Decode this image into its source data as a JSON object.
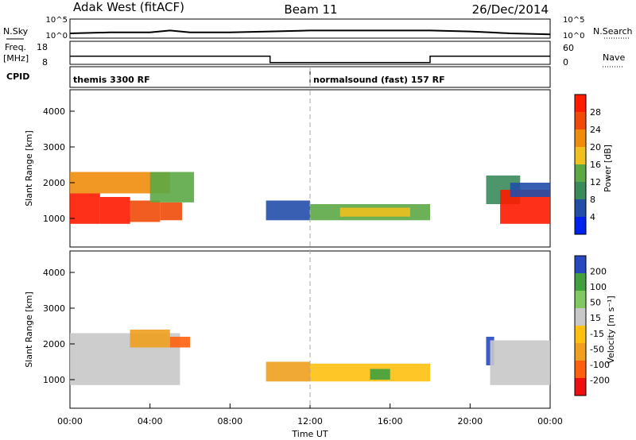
{
  "header": {
    "station": "Adak West (fitACF)",
    "beam": "Beam 11",
    "date": "26/Dec/2014"
  },
  "colors": {
    "power": [
      "#0022ee",
      "#224ea8",
      "#3a8a5a",
      "#5ca845",
      "#f0c020",
      "#f08c0c",
      "#f04a08",
      "#ff1a00"
    ],
    "velocity": [
      "#ee1010",
      "#ff6010",
      "#f0a020",
      "#ffc010",
      "#c8c8c8",
      "#80c860",
      "#40a040",
      "#2848c0"
    ]
  },
  "chart_data": [
    {
      "type": "line",
      "name": "N.Sky / N.Search",
      "ylabel": "N.Sky",
      "ylabel_right": "N.Search",
      "yticks": [
        "10^5",
        "10^0"
      ],
      "yticks_right": [
        "10^5",
        "10^0"
      ],
      "xlim": [
        0,
        24
      ],
      "x": [
        0,
        2,
        4,
        5,
        6,
        8,
        10,
        12,
        14,
        16,
        18,
        20,
        21,
        22,
        24
      ],
      "series": [
        {
          "values": [
            0.25,
            0.3,
            0.3,
            0.4,
            0.3,
            0.3,
            0.35,
            0.4,
            0.4,
            0.4,
            0.4,
            0.35,
            0.3,
            0.25,
            0.2
          ]
        }
      ]
    },
    {
      "type": "line",
      "name": "Freq / Nave",
      "ylabel": "Freq.",
      "yunit": "[MHz]",
      "ylabel_right": "Nave",
      "yticks": [
        "18",
        "8"
      ],
      "yticks_right": [
        "60",
        "0"
      ],
      "ylim": [
        8,
        18
      ],
      "xlim": [
        0,
        24
      ],
      "series": [
        {
          "x": [
            0,
            10,
            10,
            18,
            18,
            24
          ],
          "values": [
            11.5,
            11.5,
            8.8,
            8.8,
            11.5,
            11.5
          ]
        }
      ]
    },
    {
      "type": "table",
      "name": "CPID",
      "label": "CPID",
      "modes": [
        {
          "start": 0,
          "end": 12,
          "text": "themis 3300 RF"
        },
        {
          "start": 12,
          "end": 24,
          "text": "normalsound (fast) 157 RF"
        }
      ]
    },
    {
      "type": "heatmap",
      "name": "Power",
      "ylabel": "Slant Range [km]",
      "ylim": [
        200,
        4600
      ],
      "yticks": [
        1000,
        2000,
        3000,
        4000
      ],
      "xlim": [
        0,
        24
      ],
      "colorbar": {
        "label": "Power [dB]",
        "ticks": [
          "28",
          "24",
          "20",
          "16",
          "12",
          "8",
          "4"
        ]
      },
      "regions": [
        {
          "x0": 0.0,
          "x1": 1.5,
          "y0": 850,
          "y1": 1700,
          "level": 7
        },
        {
          "x0": 1.5,
          "x1": 3.0,
          "y0": 850,
          "y1": 1600,
          "level": 7
        },
        {
          "x0": 3.0,
          "x1": 4.5,
          "y0": 900,
          "y1": 1500,
          "level": 6
        },
        {
          "x0": 4.5,
          "x1": 5.6,
          "y0": 950,
          "y1": 1450,
          "level": 6
        },
        {
          "x0": 0.0,
          "x1": 5.0,
          "y0": 1700,
          "y1": 2300,
          "level": 5
        },
        {
          "x0": 4.0,
          "x1": 6.2,
          "y0": 1450,
          "y1": 2300,
          "level": 3
        },
        {
          "x0": 9.8,
          "x1": 12.0,
          "y0": 950,
          "y1": 1500,
          "level": 1
        },
        {
          "x0": 12.0,
          "x1": 18.0,
          "y0": 950,
          "y1": 1400,
          "level": 3
        },
        {
          "x0": 13.5,
          "x1": 17.0,
          "y0": 1050,
          "y1": 1300,
          "level": 4
        },
        {
          "x0": 20.8,
          "x1": 22.5,
          "y0": 1400,
          "y1": 2200,
          "level": 2
        },
        {
          "x0": 21.5,
          "x1": 24.0,
          "y0": 850,
          "y1": 1800,
          "level": 7
        },
        {
          "x0": 22.0,
          "x1": 24.0,
          "y0": 1600,
          "y1": 2000,
          "level": 1
        }
      ]
    },
    {
      "type": "heatmap",
      "name": "Velocity",
      "ylabel": "Slant Range [km]",
      "xlabel": "Time UT",
      "ylim": [
        200,
        4600
      ],
      "yticks": [
        1000,
        2000,
        3000,
        4000
      ],
      "xlim": [
        0,
        24
      ],
      "xticks": [
        "00:00",
        "04:00",
        "08:00",
        "12:00",
        "16:00",
        "20:00",
        "00:00"
      ],
      "colorbar": {
        "label": "Velocity [m s⁻¹]",
        "ticks": [
          "200",
          "100",
          "50",
          "15",
          "-15",
          "-50",
          "-100",
          "-200"
        ]
      },
      "regions": [
        {
          "x0": 0.0,
          "x1": 5.5,
          "y0": 850,
          "y1": 2300,
          "level": 4
        },
        {
          "x0": 3.0,
          "x1": 5.0,
          "y0": 1900,
          "y1": 2400,
          "level": 2
        },
        {
          "x0": 5.0,
          "x1": 6.0,
          "y0": 1900,
          "y1": 2200,
          "level": 1
        },
        {
          "x0": 9.8,
          "x1": 12.0,
          "y0": 950,
          "y1": 1500,
          "level": 2
        },
        {
          "x0": 12.0,
          "x1": 18.0,
          "y0": 950,
          "y1": 1450,
          "level": 3
        },
        {
          "x0": 15.0,
          "x1": 16.0,
          "y0": 1000,
          "y1": 1300,
          "level": 6
        },
        {
          "x0": 20.8,
          "x1": 21.2,
          "y0": 1400,
          "y1": 2200,
          "level": 7
        },
        {
          "x0": 21.0,
          "x1": 24.0,
          "y0": 850,
          "y1": 2100,
          "level": 4
        }
      ]
    }
  ]
}
